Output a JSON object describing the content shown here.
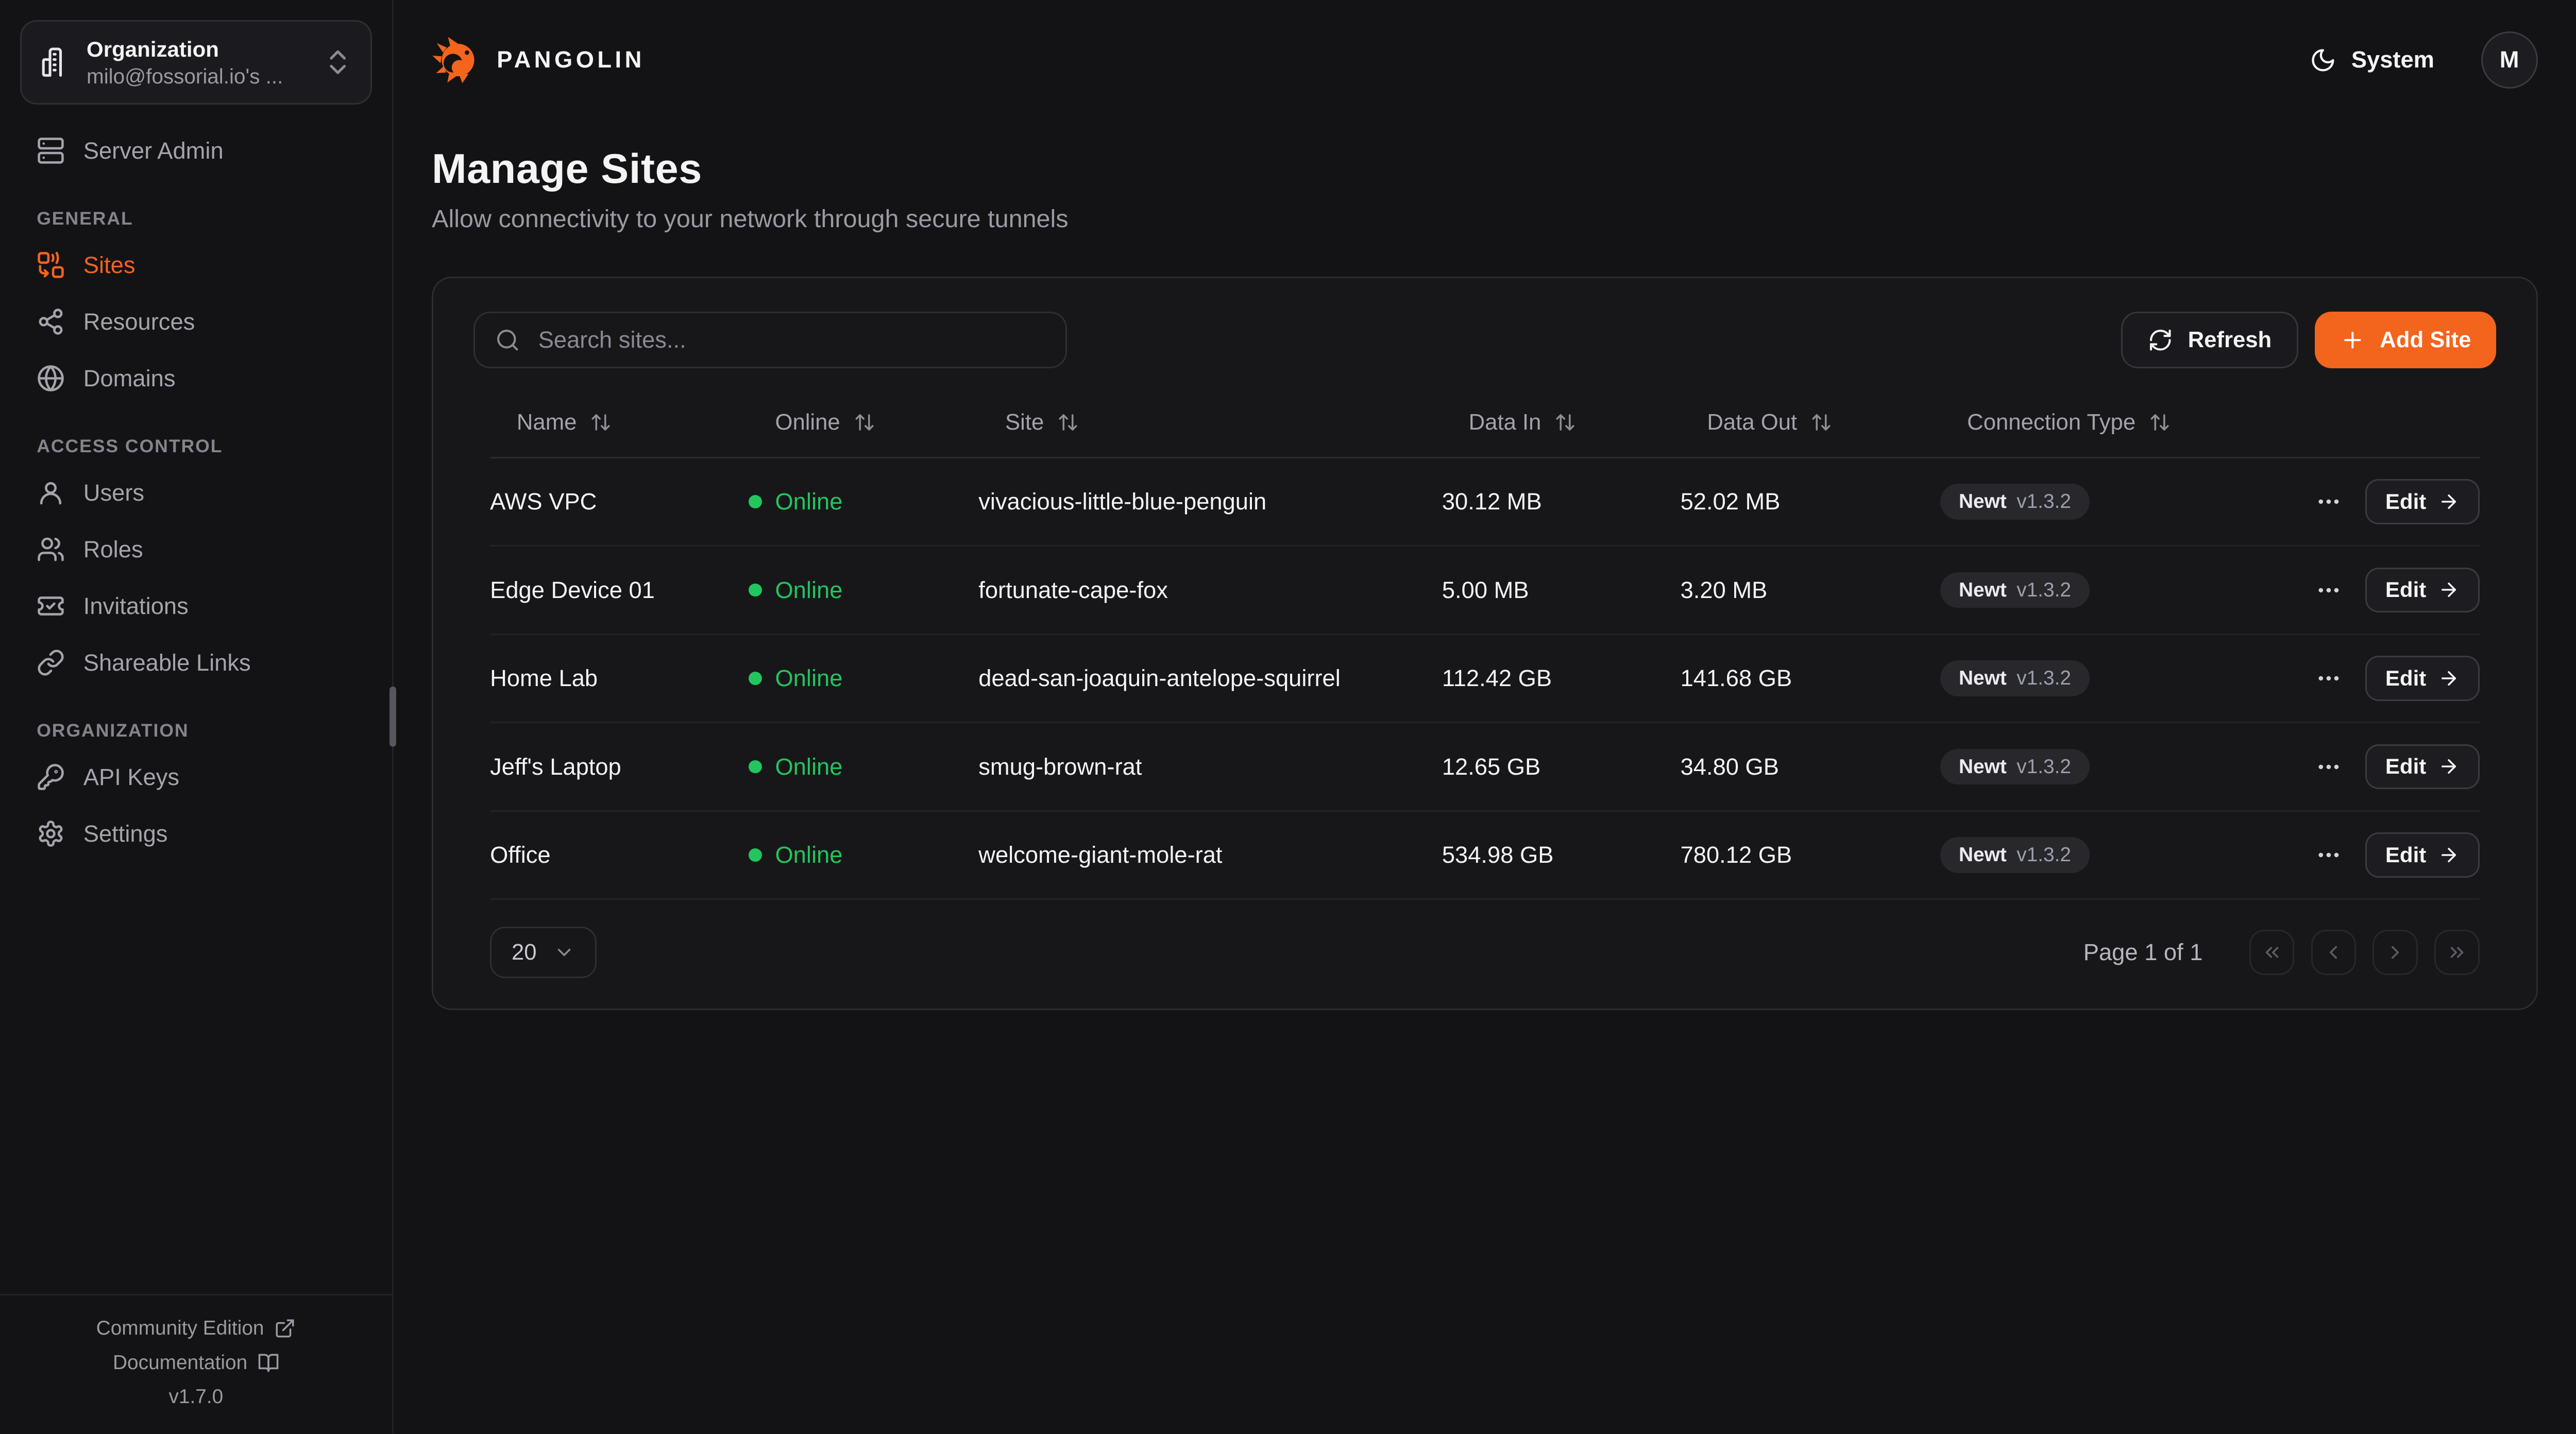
{
  "brand": {
    "name": "PANGOLIN",
    "logo_icon": "pangolin-logo-icon"
  },
  "org_selector": {
    "label": "Organization",
    "value": "milo@fossorial.io's ...",
    "icon": "building-icon",
    "toggle_icon": "chevrons-up-down-icon"
  },
  "topbar": {
    "theme_label": "System",
    "theme_icon": "moon-icon",
    "avatar_initial": "M"
  },
  "sidebar": {
    "server_admin": {
      "label": "Server Admin",
      "icon": "server-icon"
    },
    "sections": [
      {
        "heading": "GENERAL",
        "items": [
          {
            "label": "Sites",
            "icon": "combine-icon",
            "active": true
          },
          {
            "label": "Resources",
            "icon": "share-icon",
            "active": false
          },
          {
            "label": "Domains",
            "icon": "globe-icon",
            "active": false
          }
        ]
      },
      {
        "heading": "ACCESS CONTROL",
        "items": [
          {
            "label": "Users",
            "icon": "user-icon",
            "active": false
          },
          {
            "label": "Roles",
            "icon": "users-icon",
            "active": false
          },
          {
            "label": "Invitations",
            "icon": "ticket-check-icon",
            "active": false
          },
          {
            "label": "Shareable Links",
            "icon": "link-icon",
            "active": false
          }
        ]
      },
      {
        "heading": "ORGANIZATION",
        "items": [
          {
            "label": "API Keys",
            "icon": "key-icon",
            "active": false
          },
          {
            "label": "Settings",
            "icon": "settings-icon",
            "active": false
          }
        ]
      }
    ],
    "footer": {
      "community_label": "Community Edition",
      "community_icon": "external-link-icon",
      "docs_label": "Documentation",
      "docs_icon": "book-open-icon",
      "version": "v1.7.0"
    }
  },
  "page": {
    "title": "Manage Sites",
    "subtitle": "Allow connectivity to your network through secure tunnels"
  },
  "toolbar": {
    "search_placeholder": "Search sites...",
    "refresh_label": "Refresh",
    "add_site_label": "Add Site"
  },
  "table": {
    "columns": [
      {
        "label": "Name"
      },
      {
        "label": "Online"
      },
      {
        "label": "Site"
      },
      {
        "label": "Data In"
      },
      {
        "label": "Data Out"
      },
      {
        "label": "Connection Type"
      }
    ],
    "edit_label": "Edit",
    "rows": [
      {
        "name": "AWS VPC",
        "status": "Online",
        "site": "vivacious-little-blue-penguin",
        "data_in": "30.12 MB",
        "data_out": "52.02 MB",
        "conn_name": "Newt",
        "conn_version": "v1.3.2"
      },
      {
        "name": "Edge Device 01",
        "status": "Online",
        "site": "fortunate-cape-fox",
        "data_in": "5.00 MB",
        "data_out": "3.20 MB",
        "conn_name": "Newt",
        "conn_version": "v1.3.2"
      },
      {
        "name": "Home Lab",
        "status": "Online",
        "site": "dead-san-joaquin-antelope-squirrel",
        "data_in": "112.42 GB",
        "data_out": "141.68 GB",
        "conn_name": "Newt",
        "conn_version": "v1.3.2"
      },
      {
        "name": "Jeff's Laptop",
        "status": "Online",
        "site": "smug-brown-rat",
        "data_in": "12.65 GB",
        "data_out": "34.80 GB",
        "conn_name": "Newt",
        "conn_version": "v1.3.2"
      },
      {
        "name": "Office",
        "status": "Online",
        "site": "welcome-giant-mole-rat",
        "data_in": "534.98 GB",
        "data_out": "780.12 GB",
        "conn_name": "Newt",
        "conn_version": "v1.3.2"
      }
    ]
  },
  "pagination": {
    "page_size": "20",
    "info": "Page 1 of 1"
  },
  "colors": {
    "accent": "#f3641d",
    "online_green": "#22c55e",
    "background": "#131316",
    "card": "#17171a"
  }
}
